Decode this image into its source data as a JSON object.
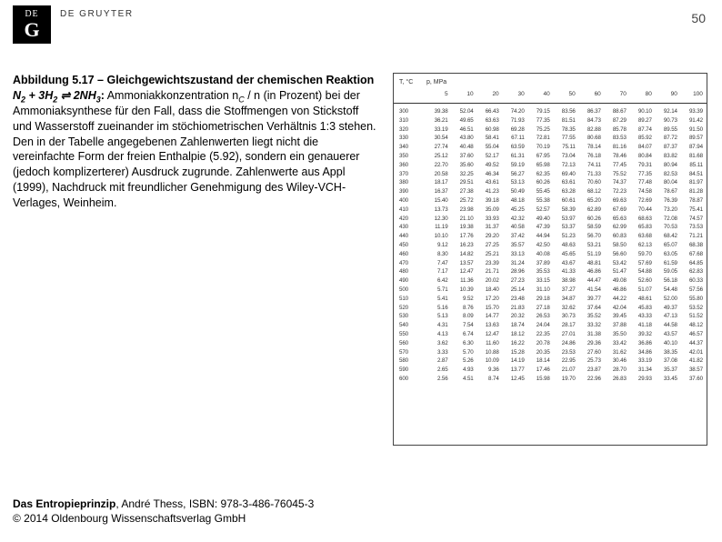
{
  "publisher": {
    "box_top": "DE",
    "box_main": "G",
    "label": "DE GRUYTER"
  },
  "page_number": "50",
  "caption": {
    "title": "Abbildung 5.17 – Gleichgewichtszustand der chemischen Reaktion",
    "reaction_pre": " N",
    "reaction_mid": " + 3H",
    "reaction_join": " ⇌ 2NH",
    "body": "Ammoniakkonzentration n",
    "body2": " / n  (in Prozent) bei der Ammoniaksynthese für den Fall, dass die Stoffmengen von Stickstoff und Wasserstoff zueinander im stöchiometrischen Verhältnis 1:3 stehen. Den in der Tabelle angegebenen Zahlenwerten liegt nicht die vereinfachte Form der freien Enthalpie (5.92), sondern ein genauerer (jedoch komplizerterer) Ausdruck zugrunde. Zahlenwerte aus Appl (1999), Nachdruck mit freundlicher Genehmigung des Wiley-VCH-Verlages, Weinheim."
  },
  "table": {
    "head_t": "T, °C",
    "head_p": "p, MPa",
    "pressures": [
      "5",
      "10",
      "20",
      "30",
      "40",
      "50",
      "60",
      "70",
      "80",
      "90",
      "100"
    ],
    "rows": [
      [
        "300",
        "39.38",
        "52.04",
        "66.43",
        "74.20",
        "79.15",
        "83.56",
        "86.37",
        "88.67",
        "90.10",
        "92.14",
        "93.39"
      ],
      [
        "310",
        "36.21",
        "49.65",
        "63.63",
        "71.93",
        "77.35",
        "81.51",
        "84.73",
        "87.29",
        "89.27",
        "90.73",
        "91.42"
      ],
      [
        "320",
        "33.19",
        "46.51",
        "60.98",
        "69.28",
        "75.25",
        "78.35",
        "82.88",
        "85.78",
        "87.74",
        "89.55",
        "91.50"
      ],
      [
        "330",
        "30.54",
        "43.80",
        "58.41",
        "67.11",
        "72.81",
        "77.55",
        "80.68",
        "83.53",
        "85.92",
        "87.72",
        "89.57"
      ],
      [
        "340",
        "27.74",
        "40.48",
        "55.04",
        "63.59",
        "70.19",
        "75.11",
        "78.14",
        "81.16",
        "84.07",
        "87.37",
        "87.94"
      ],
      [
        "350",
        "25.12",
        "37.60",
        "52.17",
        "61.31",
        "67.95",
        "73.04",
        "76.18",
        "78.46",
        "80.84",
        "83.82",
        "81.68"
      ],
      [
        "360",
        "22.70",
        "35.60",
        "49.52",
        "59.19",
        "65.98",
        "72.13",
        "74.11",
        "77.45",
        "79.31",
        "80.94",
        "85.11"
      ],
      [
        "370",
        "20.58",
        "32.25",
        "46.34",
        "56.27",
        "62.35",
        "69.40",
        "71.33",
        "75.52",
        "77.35",
        "82.53",
        "84.51"
      ],
      [
        "380",
        "18.17",
        "29.51",
        "43.61",
        "53.13",
        "60.26",
        "63.61",
        "70.60",
        "74.37",
        "77.48",
        "80.04",
        "81.97"
      ],
      [
        "390",
        "16.37",
        "27.38",
        "41.23",
        "50.49",
        "55.45",
        "63.28",
        "68.12",
        "72.23",
        "74.58",
        "78.67",
        "81.28"
      ],
      [
        "400",
        "15.40",
        "25.72",
        "39.18",
        "48.18",
        "55.38",
        "60.61",
        "65.20",
        "69.63",
        "72.69",
        "76.39",
        "78.87"
      ],
      [
        "410",
        "13.73",
        "23.98",
        "35.09",
        "45.25",
        "52.57",
        "58.39",
        "62.89",
        "67.69",
        "70.44",
        "73.20",
        "75.41"
      ],
      [
        "420",
        "12.30",
        "21.10",
        "33.93",
        "42.32",
        "49.40",
        "53.97",
        "60.26",
        "65.63",
        "68.63",
        "72.08",
        "74.57"
      ],
      [
        "430",
        "11.19",
        "19.38",
        "31.37",
        "40.58",
        "47.39",
        "53.37",
        "58.59",
        "62.99",
        "65.83",
        "70.53",
        "73.53"
      ],
      [
        "440",
        "10.10",
        "17.76",
        "29.20",
        "37.42",
        "44.94",
        "51.23",
        "56.70",
        "60.83",
        "63.68",
        "68.42",
        "71.21"
      ],
      [
        "450",
        "9.12",
        "16.23",
        "27.25",
        "35.57",
        "42.50",
        "48.63",
        "53.21",
        "58.50",
        "62.13",
        "65.07",
        "68.38"
      ],
      [
        "460",
        "8.30",
        "14.82",
        "25.21",
        "33.13",
        "40.08",
        "45.65",
        "51.19",
        "56.60",
        "59.70",
        "63.05",
        "67.68"
      ],
      [
        "470",
        "7.47",
        "13.57",
        "23.39",
        "31.24",
        "37.89",
        "43.67",
        "48.81",
        "53.42",
        "57.69",
        "61.59",
        "64.85"
      ],
      [
        "480",
        "7.17",
        "12.47",
        "21.71",
        "28.96",
        "35.53",
        "41.33",
        "46.86",
        "51.47",
        "54.88",
        "59.05",
        "62.83"
      ],
      [
        "490",
        "6.42",
        "11.36",
        "20.02",
        "27.23",
        "33.15",
        "38.98",
        "44.47",
        "49.08",
        "52.60",
        "56.18",
        "60.33"
      ],
      [
        "500",
        "5.71",
        "10.39",
        "18.40",
        "25.14",
        "31.10",
        "37.27",
        "41.54",
        "46.86",
        "51.07",
        "54.48",
        "57.56"
      ],
      [
        "510",
        "5.41",
        "9.52",
        "17.20",
        "23.48",
        "29.18",
        "34.87",
        "39.77",
        "44.22",
        "48.61",
        "52.00",
        "55.80"
      ],
      [
        "520",
        "5.16",
        "8.76",
        "15.70",
        "21.83",
        "27.18",
        "32.62",
        "37.64",
        "42.04",
        "45.83",
        "49.37",
        "53.52"
      ],
      [
        "530",
        "5.13",
        "8.09",
        "14.77",
        "20.32",
        "26.53",
        "30.73",
        "35.52",
        "39.45",
        "43.33",
        "47.13",
        "51.52"
      ],
      [
        "540",
        "4.31",
        "7.54",
        "13.63",
        "18.74",
        "24.04",
        "28.17",
        "33.32",
        "37.88",
        "41.18",
        "44.58",
        "48.12"
      ],
      [
        "550",
        "4.13",
        "6.74",
        "12.47",
        "18.12",
        "22.35",
        "27.01",
        "31.38",
        "35.50",
        "39.32",
        "43.57",
        "46.57"
      ],
      [
        "560",
        "3.62",
        "6.30",
        "11.60",
        "16.22",
        "20.78",
        "24.86",
        "29.36",
        "33.42",
        "36.86",
        "40.10",
        "44.37"
      ],
      [
        "570",
        "3.33",
        "5.70",
        "10.88",
        "15.28",
        "20.35",
        "23.53",
        "27.60",
        "31.62",
        "34.86",
        "38.35",
        "42.01"
      ],
      [
        "580",
        "2.87",
        "5.26",
        "10.09",
        "14.19",
        "18.14",
        "22.95",
        "25.73",
        "30.46",
        "33.19",
        "37.08",
        "41.82"
      ],
      [
        "590",
        "2.65",
        "4.93",
        "9.36",
        "13.77",
        "17.46",
        "21.07",
        "23.87",
        "28.70",
        "31.34",
        "35.37",
        "38.57"
      ],
      [
        "600",
        "2.56",
        "4.51",
        "8.74",
        "12.45",
        "15.98",
        "19.70",
        "22.96",
        "26.83",
        "29.93",
        "33.45",
        "37.60"
      ]
    ]
  },
  "footer": {
    "book": "Das Entropieprinzip",
    "rest": ", André Thess, ISBN: 978-3-486-76045-3",
    "copy": "© 2014 Oldenbourg Wissenschaftsverlag GmbH"
  }
}
